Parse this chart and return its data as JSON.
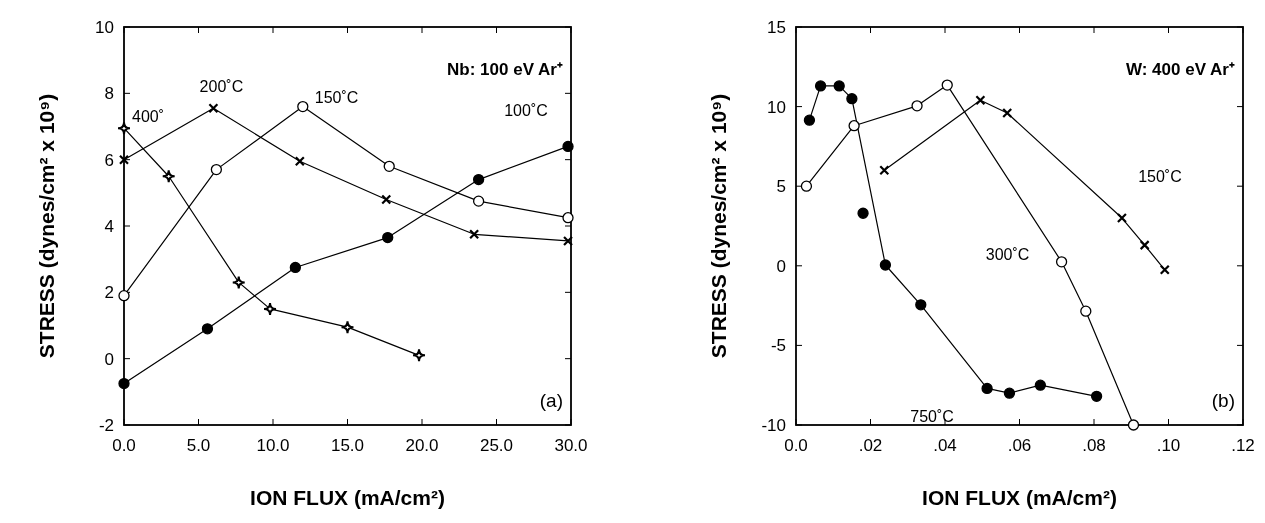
{
  "chart_data": [
    {
      "type": "line",
      "xlabel": "ION FLUX (mA/cm²)",
      "ylabel": "STRESS (dynes/cm² x 10⁹)",
      "annotations": [
        "Nb: 100 eV Ar⁺",
        "(a)"
      ],
      "xlim": [
        0,
        30
      ],
      "ylim": [
        -2,
        10
      ],
      "xticks": [
        {
          "value": 0,
          "label": "0.0"
        },
        {
          "value": 5,
          "label": "5.0"
        },
        {
          "value": 10,
          "label": "10.0"
        },
        {
          "value": 15,
          "label": "15.0"
        },
        {
          "value": 20,
          "label": "20.0"
        },
        {
          "value": 25,
          "label": "25.0"
        },
        {
          "value": 30,
          "label": "30.0"
        }
      ],
      "yticks": [
        -2,
        0,
        2,
        4,
        6,
        8,
        10
      ],
      "grid": false,
      "series": [
        {
          "name": "100˚C",
          "color": "#000000",
          "marker": "circle",
          "x": [
            0,
            5.6,
            11.5,
            17.7,
            23.8,
            29.8
          ],
          "values": [
            -0.75,
            0.9,
            2.75,
            3.65,
            5.4,
            6.4
          ]
        },
        {
          "name": "150˚C",
          "color": "#ffffff",
          "marker": "circle",
          "x": [
            0,
            6.2,
            12,
            17.8,
            23.8,
            29.8
          ],
          "values": [
            1.9,
            5.7,
            7.6,
            5.8,
            4.75,
            4.25
          ]
        },
        {
          "name": "200˚C",
          "color": "#000000",
          "marker": "cross",
          "x": [
            0,
            6,
            11.8,
            17.6,
            23.5,
            29.8
          ],
          "values": [
            6,
            7.55,
            5.95,
            4.8,
            3.75,
            3.55
          ]
        },
        {
          "name": "400˚",
          "color": "#000000",
          "marker": "diamond",
          "x": [
            0,
            3,
            7.7,
            9.8,
            15,
            19.8
          ],
          "values": [
            6.95,
            5.5,
            2.3,
            1.5,
            0.95,
            0.1
          ]
        }
      ]
    },
    {
      "type": "line",
      "xlabel": "ION FLUX (mA/cm²)",
      "ylabel": "STRESS (dynes/cm² x 10⁹)",
      "annotations": [
        "W: 400 eV Ar⁺",
        "(b)"
      ],
      "xlim": [
        0,
        0.12
      ],
      "ylim": [
        -10,
        15
      ],
      "xticks": [
        {
          "value": 0,
          "label": "0.0"
        },
        {
          "value": 0.02,
          "label": ".02"
        },
        {
          "value": 0.04,
          "label": ".04"
        },
        {
          "value": 0.06,
          "label": ".06"
        },
        {
          "value": 0.08,
          "label": ".08"
        },
        {
          "value": 0.1,
          "label": ".10"
        },
        {
          "value": 0.12,
          "label": ".12"
        }
      ],
      "yticks": [
        -10,
        -5,
        0,
        5,
        10,
        15
      ],
      "grid": false,
      "series": [
        {
          "name": "750˚C",
          "color": "#000000",
          "marker": "circle",
          "x": [
            0.0036,
            0.0066,
            0.0116,
            0.015,
            0.024,
            0.0335,
            0.0513,
            0.0573,
            0.0656,
            0.0807
          ],
          "values": [
            9.15,
            11.3,
            11.3,
            10.5,
            0.05,
            -2.45,
            -7.7,
            -8,
            -7.5,
            -8.2
          ]
        },
        {
          "type": "scatter",
          "color": "#000000",
          "marker": "circle",
          "x": [
            0.018
          ],
          "values": [
            3.3
          ]
        },
        {
          "name": "300˚C",
          "color": "#ffffff",
          "marker": "circle",
          "x": [
            0.0028,
            0.0156,
            0.0325,
            0.0406,
            0.0713,
            0.0778,
            0.0906
          ],
          "values": [
            5,
            8.8,
            10.05,
            11.35,
            0.25,
            -2.85,
            -10
          ]
        },
        {
          "name": "150˚C",
          "color": "#000000",
          "marker": "cross",
          "x": [
            0.0237,
            0.0495,
            0.0567,
            0.0875,
            0.0936,
            0.099
          ],
          "values": [
            6,
            10.4,
            9.6,
            3,
            1.3,
            -0.25
          ]
        }
      ]
    }
  ]
}
